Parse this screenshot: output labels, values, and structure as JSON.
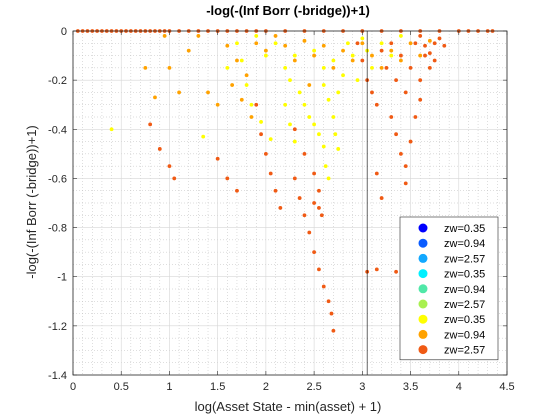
{
  "chart_data": {
    "type": "scatter",
    "title": "-log(-(Inf Borr (-bridge))+1)",
    "xlabel": "log(Asset State - min(asset) + 1)",
    "ylabel": "-log(-(Inf Borr (-bridge))+1)",
    "xlim": [
      0,
      4.5
    ],
    "ylim": [
      -1.4,
      0
    ],
    "xticks": [
      "0",
      "0.5",
      "1",
      "1.5",
      "2",
      "2.5",
      "3",
      "3.5",
      "4",
      "4.5"
    ],
    "yticks": [
      "0",
      "-0.2",
      "-0.4",
      "-0.6",
      "-0.8",
      "-1",
      "-1.2",
      "-1.4"
    ],
    "grid": true,
    "minor_grid": true,
    "legend_position": "bottom-right",
    "vertical_line_x": 3.05,
    "series": [
      {
        "name": "zw=0.35",
        "color": "#0000ff",
        "points": []
      },
      {
        "name": "zw=0.94",
        "color": "#0a5cff",
        "points": []
      },
      {
        "name": "zw=2.57",
        "color": "#12a8ff",
        "points": []
      },
      {
        "name": "zw=0.35",
        "color": "#00f0ff",
        "points": []
      },
      {
        "name": "zw=0.94",
        "color": "#50e8a8",
        "points": []
      },
      {
        "name": "zw=2.57",
        "color": "#a8f050",
        "points": []
      },
      {
        "name": "zw=0.35",
        "color": "#ffff00",
        "points": [
          [
            0.4,
            -0.4
          ],
          [
            1.35,
            -0.43
          ],
          [
            1.6,
            -0.15
          ],
          [
            1.7,
            -0.05
          ],
          [
            1.75,
            -0.12
          ],
          [
            1.8,
            -0.22
          ],
          [
            1.85,
            -0.3
          ],
          [
            1.9,
            -0.02
          ],
          [
            1.95,
            -0.37
          ],
          [
            2.0,
            -0.1
          ],
          [
            2.05,
            -0.44
          ],
          [
            2.1,
            -0.05
          ],
          [
            2.2,
            -0.15
          ],
          [
            2.25,
            -0.2
          ],
          [
            2.3,
            -0.1
          ],
          [
            2.35,
            -0.25
          ],
          [
            2.4,
            -0.3
          ],
          [
            2.45,
            -0.35
          ],
          [
            2.5,
            -0.38
          ],
          [
            2.55,
            -0.42
          ],
          [
            2.6,
            -0.47
          ],
          [
            2.5,
            -0.08
          ],
          [
            2.6,
            -0.15
          ],
          [
            2.7,
            -0.12
          ],
          [
            2.75,
            -0.25
          ],
          [
            2.8,
            -0.18
          ],
          [
            2.85,
            -0.05
          ],
          [
            2.9,
            -0.1
          ],
          [
            2.95,
            -0.2
          ],
          [
            3.0,
            -0.03
          ],
          [
            3.05,
            -0.08
          ],
          [
            3.1,
            -0.15
          ],
          [
            3.2,
            -0.05
          ],
          [
            3.3,
            -0.1
          ],
          [
            3.4,
            -0.02
          ],
          [
            2.6,
            -0.22
          ],
          [
            2.65,
            -0.28
          ],
          [
            2.7,
            -0.35
          ],
          [
            2.72,
            -0.42
          ],
          [
            2.75,
            -0.48
          ],
          [
            2.62,
            -0.55
          ],
          [
            2.65,
            -0.6
          ],
          [
            2.2,
            -0.3
          ],
          [
            2.25,
            -0.38
          ],
          [
            2.3,
            -0.45
          ]
        ]
      },
      {
        "name": "zw=0.94",
        "color": "#ffa200",
        "points": [
          [
            0.75,
            -0.15
          ],
          [
            0.85,
            -0.27
          ],
          [
            0.95,
            -0.02
          ],
          [
            1.0,
            -0.15
          ],
          [
            1.1,
            -0.25
          ],
          [
            1.2,
            -0.08
          ],
          [
            1.3,
            -0.02
          ],
          [
            1.4,
            -0.25
          ],
          [
            1.5,
            -0.3
          ],
          [
            1.6,
            -0.06
          ],
          [
            1.7,
            -0.12
          ],
          [
            1.8,
            -0.18
          ],
          [
            1.9,
            -0.05
          ],
          [
            2.0,
            -0.08
          ],
          [
            2.1,
            -0.02
          ],
          [
            2.2,
            -0.06
          ],
          [
            2.3,
            -0.12
          ],
          [
            2.4,
            -0.04
          ],
          [
            2.5,
            -0.1
          ],
          [
            2.6,
            -0.06
          ],
          [
            2.7,
            -0.15
          ],
          [
            2.8,
            -0.08
          ],
          [
            2.9,
            -0.12
          ],
          [
            3.0,
            -0.05
          ],
          [
            3.1,
            -0.1
          ],
          [
            3.2,
            -0.15
          ],
          [
            3.3,
            -0.08
          ],
          [
            3.4,
            -0.12
          ],
          [
            3.5,
            -0.05
          ],
          [
            3.6,
            -0.1
          ],
          [
            3.7,
            -0.04
          ],
          [
            1.65,
            -0.22
          ],
          [
            1.75,
            -0.28
          ],
          [
            1.85,
            -0.35
          ],
          [
            2.45,
            -0.22
          ]
        ]
      },
      {
        "name": "zw=2.57",
        "color": "#f05a14",
        "points": [
          [
            0.05,
            0
          ],
          [
            0.1,
            0
          ],
          [
            0.15,
            0
          ],
          [
            0.2,
            0
          ],
          [
            0.25,
            0
          ],
          [
            0.3,
            0
          ],
          [
            0.35,
            0
          ],
          [
            0.4,
            0
          ],
          [
            0.45,
            0
          ],
          [
            0.5,
            0
          ],
          [
            0.55,
            0
          ],
          [
            0.6,
            0
          ],
          [
            0.65,
            0
          ],
          [
            0.7,
            0
          ],
          [
            0.75,
            0
          ],
          [
            0.8,
            0
          ],
          [
            0.85,
            0
          ],
          [
            0.9,
            0
          ],
          [
            0.95,
            0
          ],
          [
            1.0,
            0
          ],
          [
            1.1,
            0
          ],
          [
            1.2,
            0
          ],
          [
            1.3,
            0
          ],
          [
            1.4,
            0
          ],
          [
            1.5,
            0
          ],
          [
            1.6,
            0
          ],
          [
            1.7,
            0
          ],
          [
            1.8,
            0
          ],
          [
            1.9,
            0
          ],
          [
            2.0,
            0
          ],
          [
            2.2,
            0
          ],
          [
            2.4,
            0
          ],
          [
            2.6,
            0
          ],
          [
            2.8,
            0
          ],
          [
            3.0,
            0
          ],
          [
            3.2,
            0
          ],
          [
            3.4,
            0
          ],
          [
            3.6,
            0
          ],
          [
            3.8,
            0
          ],
          [
            4.0,
            0
          ],
          [
            4.1,
            0
          ],
          [
            4.2,
            0
          ],
          [
            4.3,
            0
          ],
          [
            4.35,
            0
          ],
          [
            0.8,
            -0.38
          ],
          [
            0.9,
            -0.48
          ],
          [
            1.0,
            -0.55
          ],
          [
            1.05,
            -0.6
          ],
          [
            1.5,
            -0.52
          ],
          [
            1.6,
            -0.6
          ],
          [
            1.7,
            -0.65
          ],
          [
            1.9,
            -0.3
          ],
          [
            1.95,
            -0.42
          ],
          [
            2.0,
            -0.5
          ],
          [
            2.05,
            -0.58
          ],
          [
            2.1,
            -0.65
          ],
          [
            2.15,
            -0.72
          ],
          [
            2.3,
            -0.6
          ],
          [
            2.35,
            -0.68
          ],
          [
            2.4,
            -0.75
          ],
          [
            2.45,
            -0.82
          ],
          [
            2.5,
            -0.9
          ],
          [
            2.55,
            -0.97
          ],
          [
            2.6,
            -1.04
          ],
          [
            2.65,
            -1.1
          ],
          [
            2.68,
            -1.15
          ],
          [
            2.7,
            -1.22
          ],
          [
            2.5,
            -0.7
          ],
          [
            2.55,
            -0.72
          ],
          [
            2.58,
            -0.75
          ],
          [
            2.3,
            -0.4
          ],
          [
            2.4,
            -0.5
          ],
          [
            2.5,
            -0.58
          ],
          [
            2.55,
            -0.65
          ],
          [
            2.95,
            -0.05
          ],
          [
            3.0,
            -0.12
          ],
          [
            3.05,
            -0.2
          ],
          [
            3.1,
            -0.25
          ],
          [
            3.15,
            -0.3
          ],
          [
            3.2,
            -0.08
          ],
          [
            3.25,
            -0.15
          ],
          [
            3.3,
            -0.05
          ],
          [
            3.35,
            -0.2
          ],
          [
            3.4,
            -0.1
          ],
          [
            3.45,
            -0.25
          ],
          [
            3.5,
            -0.15
          ],
          [
            3.55,
            -0.05
          ],
          [
            3.6,
            -0.2
          ],
          [
            3.65,
            -0.1
          ],
          [
            3.7,
            -0.15
          ],
          [
            3.75,
            -0.05
          ],
          [
            3.3,
            -0.35
          ],
          [
            3.35,
            -0.42
          ],
          [
            3.4,
            -0.5
          ],
          [
            3.45,
            -0.55
          ],
          [
            3.5,
            -0.45
          ],
          [
            3.55,
            -0.35
          ],
          [
            3.6,
            -0.28
          ],
          [
            3.45,
            -0.62
          ],
          [
            3.15,
            -0.58
          ],
          [
            3.2,
            -0.68
          ],
          [
            3.05,
            -0.98
          ],
          [
            3.15,
            -0.97
          ],
          [
            3.35,
            -0.98
          ],
          [
            3.7,
            -0.97
          ],
          [
            3.6,
            -0.02
          ],
          [
            3.65,
            -0.06
          ],
          [
            3.7,
            -0.09
          ],
          [
            3.75,
            -0.12
          ],
          [
            3.8,
            -0.03
          ],
          [
            3.85,
            -0.06
          ]
        ]
      }
    ]
  }
}
